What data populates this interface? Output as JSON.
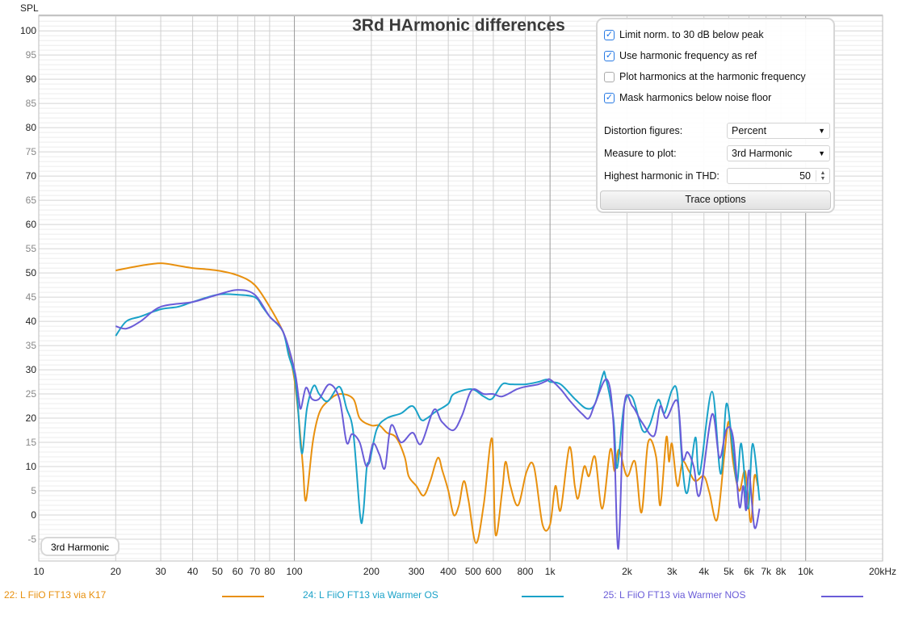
{
  "chart_data": {
    "type": "line",
    "title": "3Rd HArmonic differences",
    "ylabel": "SPL",
    "xlabel": "",
    "x_unit": "kHz",
    "x_scale": "log",
    "xlim": [
      10,
      20000
    ],
    "ylim": [
      -9.5,
      103.2
    ],
    "grid": true,
    "legend_position": "bottom",
    "y_ticks": [
      -5,
      0,
      5,
      10,
      15,
      20,
      25,
      30,
      35,
      40,
      45,
      50,
      55,
      60,
      65,
      70,
      75,
      80,
      85,
      90,
      95,
      100
    ],
    "x_ticks": [
      {
        "value": 10,
        "label": "10"
      },
      {
        "value": 20,
        "label": "20"
      },
      {
        "value": 30,
        "label": "30"
      },
      {
        "value": 40,
        "label": "40"
      },
      {
        "value": 50,
        "label": "50"
      },
      {
        "value": 60,
        "label": "60"
      },
      {
        "value": 70,
        "label": "70"
      },
      {
        "value": 80,
        "label": "80"
      },
      {
        "value": 100,
        "label": "100"
      },
      {
        "value": 200,
        "label": "200"
      },
      {
        "value": 300,
        "label": "300"
      },
      {
        "value": 400,
        "label": "400"
      },
      {
        "value": 500,
        "label": "500"
      },
      {
        "value": 600,
        "label": "600"
      },
      {
        "value": 800,
        "label": "800"
      },
      {
        "value": 1000,
        "label": "1k"
      },
      {
        "value": 2000,
        "label": "2k"
      },
      {
        "value": 3000,
        "label": "3k"
      },
      {
        "value": 4000,
        "label": "4k"
      },
      {
        "value": 5000,
        "label": "5k"
      },
      {
        "value": 6000,
        "label": "6k"
      },
      {
        "value": 7000,
        "label": "7k"
      },
      {
        "value": 8000,
        "label": "8k"
      },
      {
        "value": 10000,
        "label": "10k"
      },
      {
        "value": 20000,
        "label": "20kHz"
      }
    ],
    "series": [
      {
        "name": "22: L FiiO FT13 via K17",
        "color": "#e8900e",
        "x": [
          20,
          25,
          30,
          35,
          40,
          50,
          60,
          70,
          80,
          90,
          95,
          100,
          104,
          108,
          111,
          118,
          125,
          135,
          150,
          170,
          180,
          200,
          215,
          230,
          250,
          270,
          280,
          300,
          320,
          340,
          364,
          380,
          400,
          420,
          440,
          460,
          480,
          513,
          550,
          593,
          612,
          650,
          670,
          700,
          750,
          810,
          865,
          935,
          1000,
          1050,
          1100,
          1190,
          1250,
          1290,
          1360,
          1420,
          1500,
          1600,
          1720,
          1790,
          1860,
          2000,
          2150,
          2280,
          2420,
          2600,
          2700,
          2850,
          2920,
          3000,
          3150,
          3300,
          3500,
          3700,
          4000,
          4200,
          4500,
          4800,
          5000,
          5200,
          5500,
          5800,
          6100,
          6300,
          6500
        ],
        "y": [
          50.5,
          51.5,
          52,
          51.5,
          51,
          50.5,
          49.5,
          47.5,
          43,
          38,
          34,
          28,
          20,
          10,
          3,
          15,
          21,
          23.5,
          25,
          24,
          20,
          18.5,
          18.5,
          17,
          16,
          12,
          8,
          6,
          4,
          7,
          11.8,
          9,
          5,
          0,
          2,
          7,
          3,
          -5.8,
          2,
          15.8,
          -4,
          5,
          11,
          6,
          2,
          9,
          10,
          -2,
          -2,
          6,
          1,
          14,
          6,
          3.5,
          10,
          8,
          12,
          1.3,
          13.5,
          9,
          13.5,
          8,
          11,
          0.5,
          15,
          12,
          2,
          16,
          11,
          14.7,
          6,
          11,
          9,
          7,
          8,
          4.7,
          -1,
          12,
          19.3,
          11,
          5,
          9,
          -1.5,
          8,
          6
        ]
      },
      {
        "name": "24: L FiiO FT13 via Warmer OS",
        "color": "#1aa2c8",
        "x": [
          20,
          22,
          25,
          30,
          35,
          40,
          50,
          60,
          70,
          75,
          80,
          90,
          95,
          100,
          103,
          107,
          112,
          119,
          125,
          135,
          150,
          160,
          170,
          181,
          186,
          192,
          197,
          210,
          230,
          261,
          290,
          313,
          330,
          356,
          400,
          420,
          494,
          550,
          593,
          650,
          700,
          800,
          900,
          968,
          1000,
          1100,
          1250,
          1390,
          1500,
          1610,
          1650,
          1770,
          1830,
          1950,
          2100,
          2300,
          2450,
          2650,
          2800,
          3000,
          3150,
          3300,
          3450,
          3700,
          3850,
          4300,
          4650,
          4900,
          5200,
          5400,
          5600,
          5950,
          6200,
          6600
        ],
        "y": [
          37,
          40,
          41,
          42.5,
          43,
          44,
          45.5,
          45.5,
          45,
          43,
          41,
          38,
          33,
          29,
          23,
          12.7,
          22,
          26.7,
          25,
          23.5,
          26.5,
          22,
          17,
          -0.3,
          0.5,
          10,
          11,
          17.7,
          20,
          21,
          22.5,
          19.7,
          20,
          21.3,
          23,
          25,
          26,
          24.5,
          24,
          27,
          27,
          27,
          27.5,
          28,
          27.5,
          27,
          24,
          22,
          23,
          29,
          28.5,
          20,
          9.7,
          22.7,
          24.3,
          17.5,
          18.5,
          23.8,
          21,
          25.8,
          25,
          9.7,
          4.7,
          16,
          8.5,
          25.5,
          8.5,
          23,
          13,
          6.8,
          14.7,
          1.3,
          14.7,
          3
        ]
      },
      {
        "name": "25: L FiiO FT13 via Warmer NOS",
        "color": "#6a5cd8",
        "x": [
          20,
          22,
          25,
          30,
          40,
          50,
          60,
          70,
          80,
          90,
          100,
          104,
          106,
          111,
          117,
          125,
          137,
          150,
          160,
          168,
          180,
          192,
          203,
          215,
          226,
          239,
          261,
          290,
          313,
          351,
          377,
          418,
          452,
          494,
          550,
          600,
          650,
          743,
          800,
          900,
          968,
          1000,
          1100,
          1200,
          1340,
          1420,
          1500,
          1670,
          1770,
          1850,
          1950,
          2100,
          2280,
          2550,
          2700,
          2850,
          3150,
          3300,
          3450,
          3650,
          3850,
          4300,
          4600,
          4900,
          5200,
          5500,
          5700,
          5850,
          6000,
          6300,
          6600
        ],
        "y": [
          39,
          38.5,
          40,
          43,
          44,
          45.5,
          46.5,
          45.5,
          41,
          38,
          30,
          24,
          22,
          26.3,
          24,
          24,
          27,
          24,
          15,
          16.7,
          15,
          10,
          14.7,
          12.5,
          9.7,
          18.5,
          15,
          17,
          14.7,
          21.7,
          19.3,
          17.5,
          20.5,
          25.8,
          25,
          25,
          24.5,
          26,
          26.5,
          27,
          27.7,
          28,
          26,
          23.5,
          20.8,
          20,
          23,
          28,
          19,
          -7,
          22.5,
          22.5,
          19.3,
          16.3,
          22.5,
          20,
          23.5,
          11.8,
          13,
          10,
          4.2,
          20.8,
          11.8,
          17.7,
          16,
          1.8,
          6,
          1,
          9.2,
          -2.5,
          1.3
        ]
      }
    ]
  },
  "tag_label": "3rd Harmonic",
  "panel": {
    "checkboxes": [
      {
        "label": "Limit norm. to 30 dB below peak",
        "checked": true
      },
      {
        "label": "Use harmonic frequency as ref",
        "checked": true
      },
      {
        "label": "Plot harmonics at the harmonic frequency",
        "checked": false
      },
      {
        "label": "Mask harmonics below noise floor",
        "checked": true
      }
    ],
    "distortion_label": "Distortion figures:",
    "distortion_value": "Percent",
    "measure_label": "Measure to plot:",
    "measure_value": "3rd Harmonic",
    "highest_label": "Highest harmonic in THD:",
    "highest_value": "50",
    "trace_options": "Trace options"
  },
  "check_glyph": "✓"
}
